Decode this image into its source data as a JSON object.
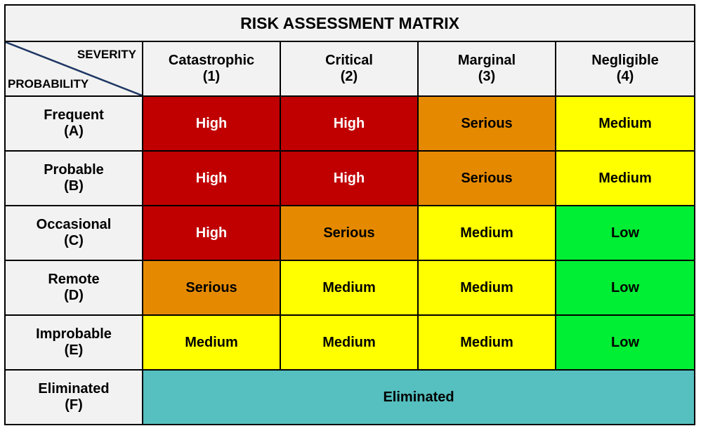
{
  "chart_data": {
    "type": "table",
    "title": "RISK ASSESSMENT MATRIX",
    "corner": {
      "column_axis_label": "SEVERITY",
      "row_axis_label": "PROBABILITY"
    },
    "columns": [
      {
        "name": "Catastrophic",
        "code": "(1)"
      },
      {
        "name": "Critical",
        "code": "(2)"
      },
      {
        "name": "Marginal",
        "code": "(3)"
      },
      {
        "name": "Negligible",
        "code": "(4)"
      }
    ],
    "rows": [
      {
        "name": "Frequent",
        "code": "(A)",
        "cells": [
          "High",
          "High",
          "Serious",
          "Medium"
        ]
      },
      {
        "name": "Probable",
        "code": "(B)",
        "cells": [
          "High",
          "High",
          "Serious",
          "Medium"
        ]
      },
      {
        "name": "Occasional",
        "code": "(C)",
        "cells": [
          "High",
          "Serious",
          "Medium",
          "Low"
        ]
      },
      {
        "name": "Remote",
        "code": "(D)",
        "cells": [
          "Serious",
          "Medium",
          "Medium",
          "Low"
        ]
      },
      {
        "name": "Improbable",
        "code": "(E)",
        "cells": [
          "Medium",
          "Medium",
          "Medium",
          "Low"
        ]
      }
    ],
    "eliminated_row": {
      "name": "Eliminated",
      "code": "(F)",
      "value": "Eliminated"
    },
    "level_colors": {
      "High": "#c00000",
      "Serious": "#e58a00",
      "Medium": "#ffff00",
      "Low": "#00ee33",
      "Eliminated": "#56bfbf"
    },
    "white_text_levels": [
      "High"
    ]
  }
}
